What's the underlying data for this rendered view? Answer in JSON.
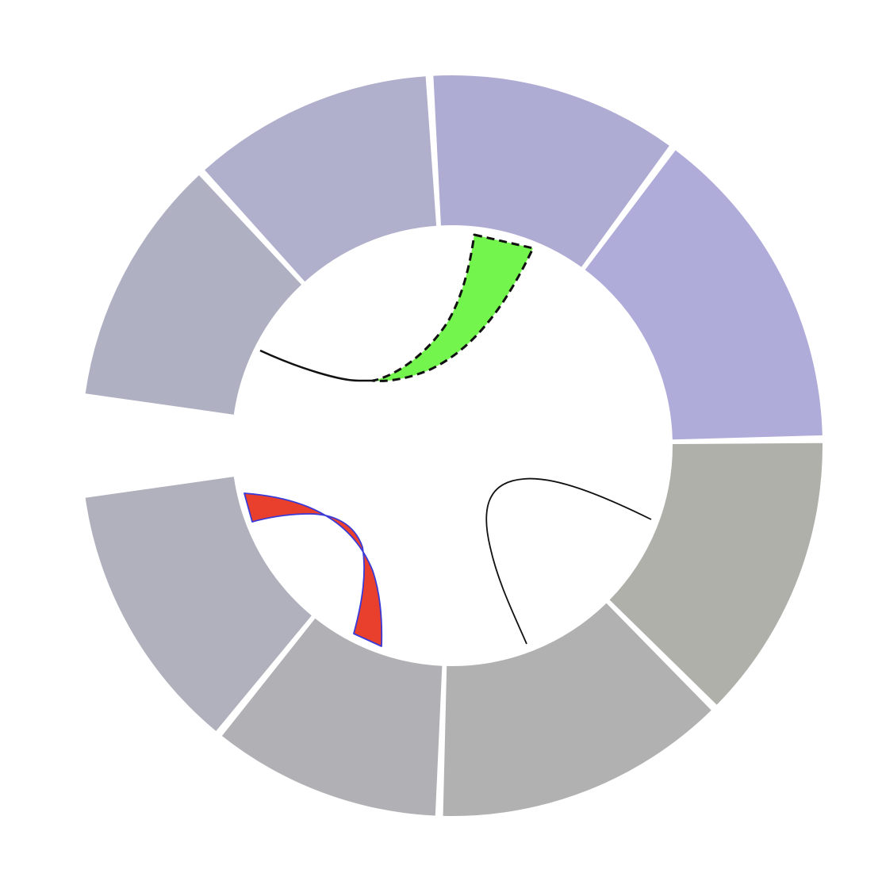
{
  "chart_data": {
    "type": "chord",
    "segments": [
      {
        "id": "seg-1",
        "color": "#afacd9"
      },
      {
        "id": "seg-2",
        "color": "#afacd4"
      },
      {
        "id": "seg-3",
        "color": "#b0afcc"
      },
      {
        "id": "seg-4",
        "color": "#b0b0c3"
      },
      {
        "id": "seg-5",
        "color": "#b1b1bd"
      },
      {
        "id": "seg-6",
        "color": "#b1b0b5"
      },
      {
        "id": "seg-7",
        "color": "#b1b1b1"
      },
      {
        "id": "seg-8",
        "color": "#b0b0aa"
      }
    ],
    "links": [
      {
        "id": "link-green",
        "kind": "ribbon",
        "fill": "#73f54d",
        "stroke": "#111111",
        "dashed": true
      },
      {
        "id": "link-red",
        "kind": "ribbon",
        "fill": "#e8402c",
        "stroke": "#3a3ad8",
        "dashed": false
      },
      {
        "id": "link-line-1",
        "kind": "line",
        "fill": "none",
        "stroke": "#111111",
        "dashed": false
      },
      {
        "id": "link-line-2",
        "kind": "line",
        "fill": "none",
        "stroke": "#111111",
        "dashed": false
      }
    ]
  }
}
